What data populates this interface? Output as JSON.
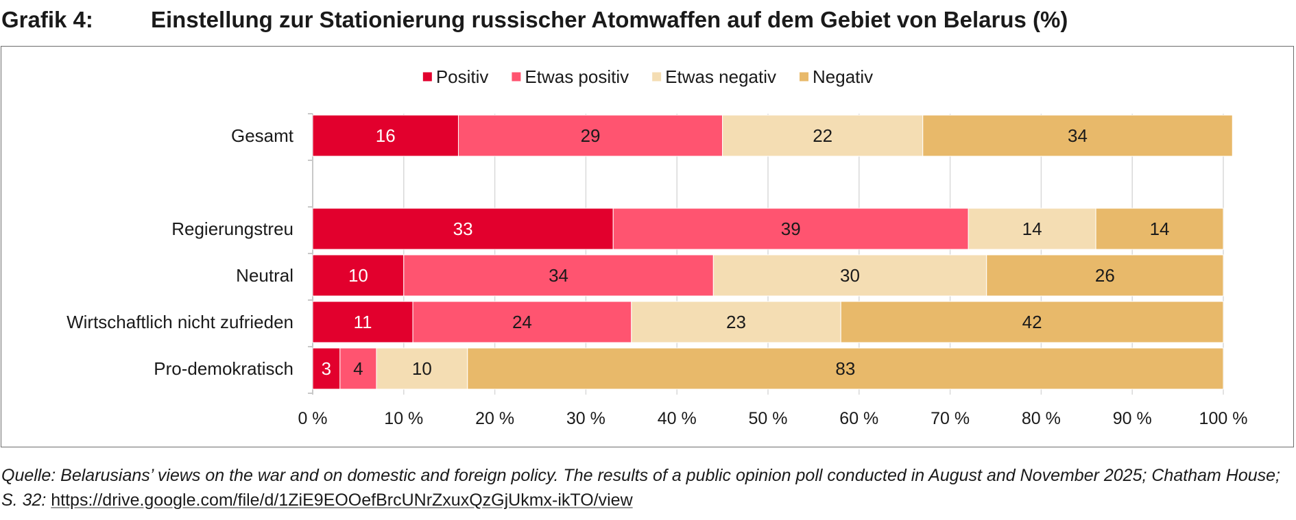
{
  "header": {
    "label": "Grafik 4:",
    "title": "Einstellung zur Stationierung russischer Atomwaffen auf dem Gebiet von Belarus (%)"
  },
  "source": {
    "text": "Quelle: Belarusians’ views on the war and on domestic and foreign policy. The results of a public opinion poll conducted in August and November 2025; Chatham House; S. 32: ",
    "url": "https://drive.google.com/file/d/1ZiE9EOOefBrcUNrZxuxQzGjUkmx-ikTO/view"
  },
  "chart_data": {
    "type": "bar",
    "orientation": "horizontal",
    "stacked": true,
    "title": "Einstellung zur Stationierung russischer Atomwaffen auf dem Gebiet von Belarus (%)",
    "xlabel": "",
    "ylabel": "",
    "xlim": [
      0,
      100
    ],
    "grid": true,
    "legend": "top-center",
    "x_ticks": [
      "0 %",
      "10 %",
      "20 %",
      "30 %",
      "40 %",
      "50 %",
      "60 %",
      "70 %",
      "80 %",
      "90 %",
      "100 %"
    ],
    "categories": [
      "Gesamt",
      "",
      "Regierungstreu",
      "Neutral",
      "Wirtschaftlich nicht zufrieden",
      "Pro-demokratisch"
    ],
    "series": [
      {
        "name": "Positiv",
        "color": "#e2002d",
        "label_color": "#ffffff",
        "values": [
          16,
          null,
          33,
          10,
          11,
          3
        ]
      },
      {
        "name": "Etwas positiv",
        "color": "#ff5470",
        "label_color": "#1a1a1a",
        "values": [
          29,
          null,
          39,
          34,
          24,
          4
        ]
      },
      {
        "name": "Etwas negativ",
        "color": "#f4ddb3",
        "label_color": "#1a1a1a",
        "values": [
          22,
          null,
          14,
          30,
          23,
          10
        ]
      },
      {
        "name": "Negativ",
        "color": "#e8b96a",
        "label_color": "#1a1a1a",
        "values": [
          34,
          null,
          14,
          26,
          42,
          83
        ]
      }
    ]
  }
}
